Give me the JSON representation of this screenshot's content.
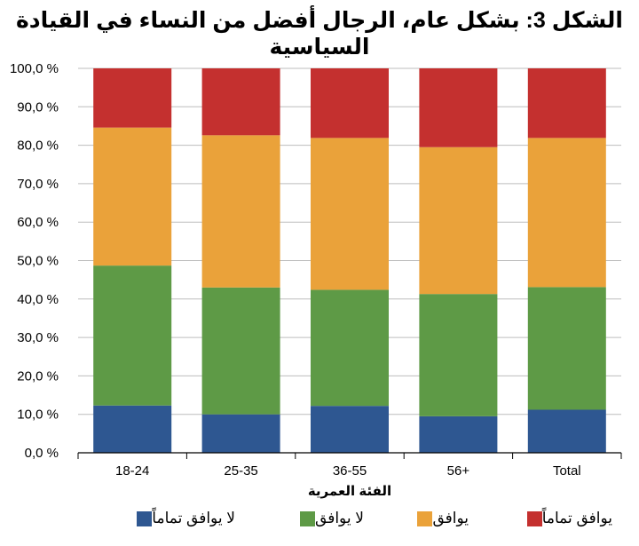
{
  "chart_data": {
    "type": "bar",
    "stacked": true,
    "title": "الشكل 3: بشكل عام، الرجال أفضل من النساء في القيادة السياسية",
    "xlabel": "الفئة العمرية",
    "ylabel": "",
    "ylim": [
      0,
      100
    ],
    "yticks": [
      "0,0 %",
      "10,0 %",
      "20,0 %",
      "30,0 %",
      "40,0 %",
      "50,0 %",
      "60,0 %",
      "70,0 %",
      "80,0 %",
      "90,0 %",
      "100,0 %"
    ],
    "categories": [
      "18-24",
      "25-35",
      "36-55",
      "56+",
      "Total"
    ],
    "series": [
      {
        "name": "لا يوافق تماماً",
        "color": "#2e5791",
        "values": [
          12.3,
          10.0,
          12.2,
          9.5,
          11.2
        ]
      },
      {
        "name": "لا يوافق",
        "color": "#5e9a46",
        "values": [
          36.4,
          33.0,
          30.2,
          31.8,
          31.9
        ]
      },
      {
        "name": "يوافق",
        "color": "#eaa23a",
        "values": [
          35.9,
          39.6,
          39.5,
          38.2,
          38.8
        ]
      },
      {
        "name": "يوافق تماماً",
        "color": "#c4302f",
        "values": [
          15.4,
          17.4,
          18.1,
          20.5,
          18.1
        ]
      }
    ],
    "grid": true,
    "legend_position": "bottom"
  }
}
